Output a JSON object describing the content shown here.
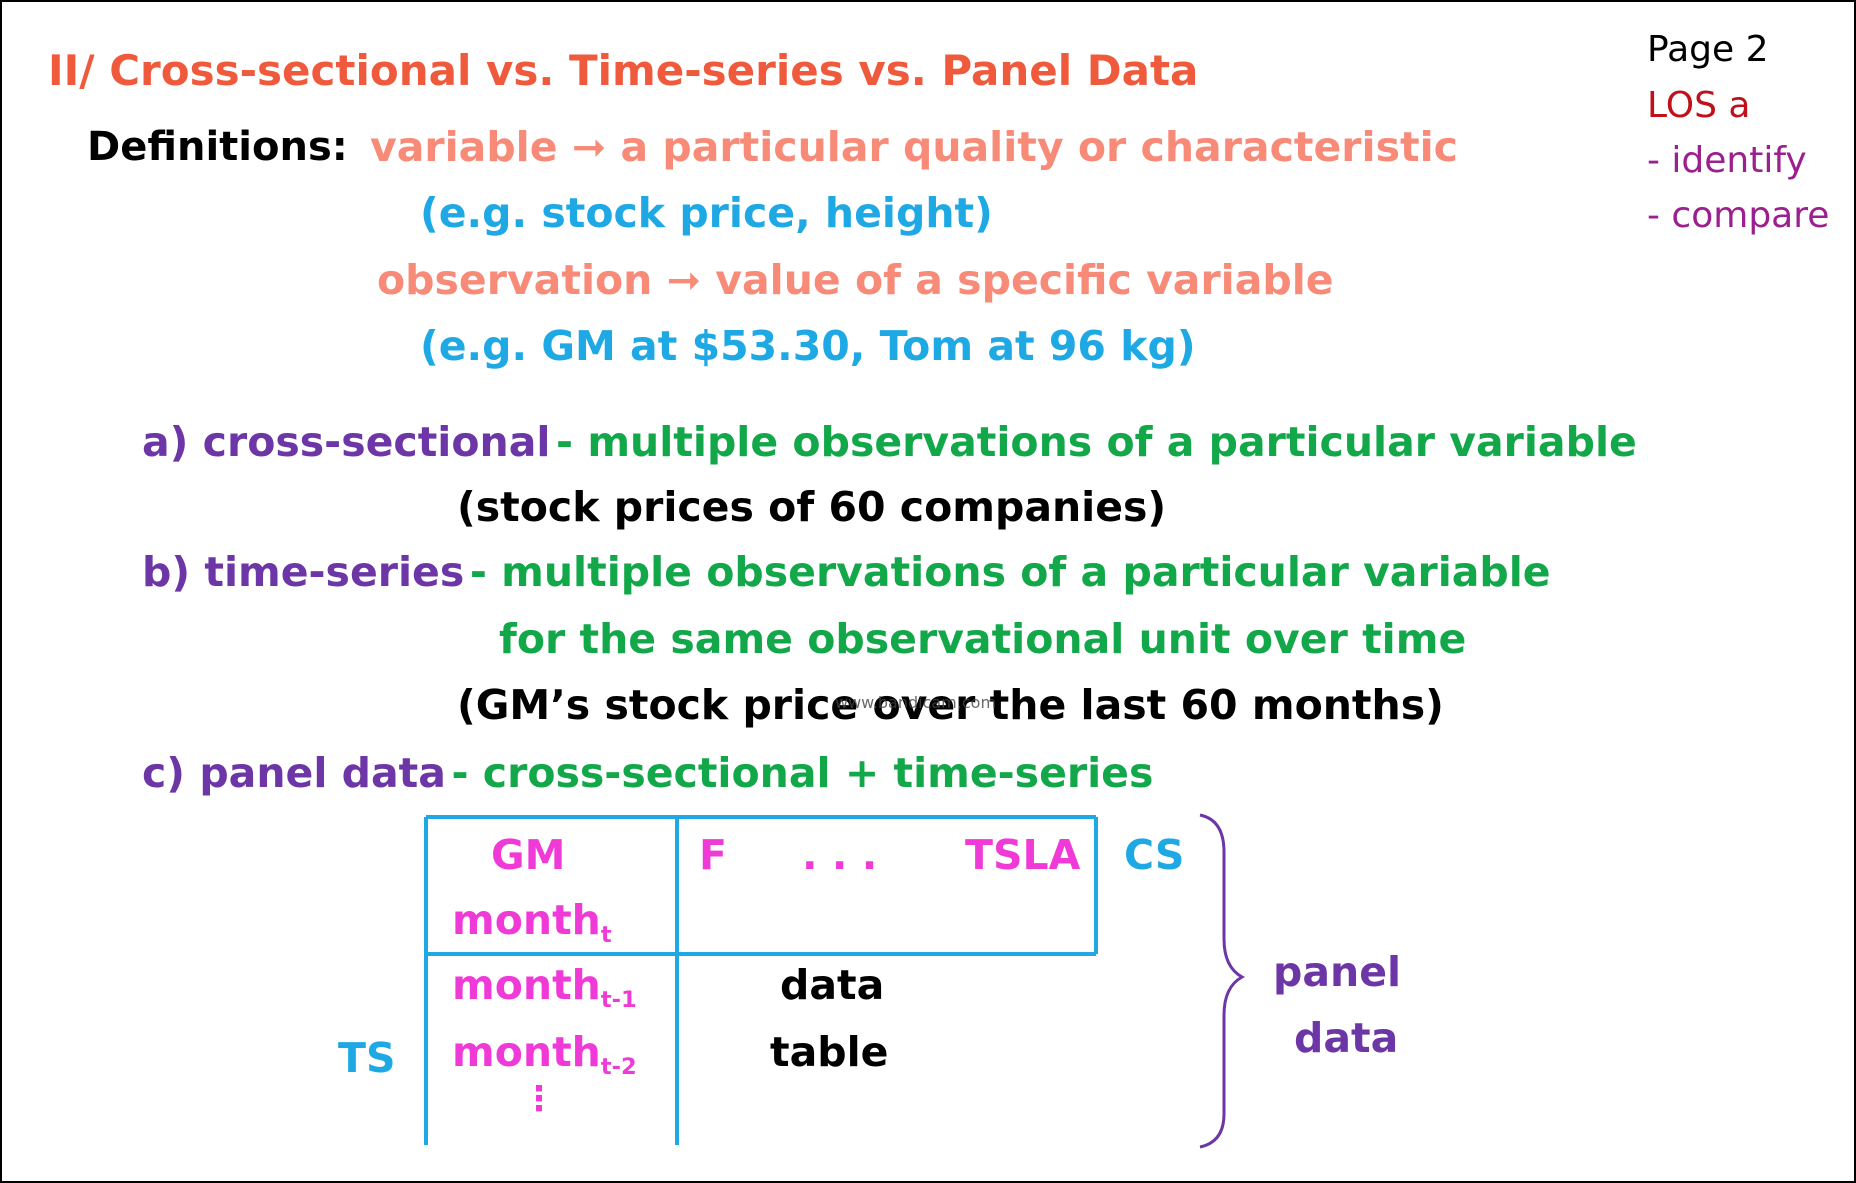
{
  "title": "II/ Cross-sectional vs. Time-series vs. Panel Data",
  "page_info": {
    "page": "Page 2",
    "los": "LOS a",
    "bullet1": "- identify",
    "bullet2": "- compare"
  },
  "definitions": {
    "label": "Definitions:",
    "variable_def": "variable ➞ a particular quality or characteristic",
    "variable_example": "(e.g. stock price, height)",
    "observation_def": "observation ➞ value of a specific variable",
    "observation_example": "(e.g. GM at $53.30, Tom at 96 kg)"
  },
  "types": {
    "a_label": "a) cross-sectional",
    "a_desc": "- multiple observations of a particular variable",
    "a_example": "(stock prices of 60 companies)",
    "b_label": "b) time-series",
    "b_desc": "- multiple observations of a particular variable",
    "b_desc2": "for the same observational unit over time",
    "b_example": "(GM’s stock price over the last 60 months)",
    "c_label": "c) panel data",
    "c_desc": "- cross-sectional + time-series"
  },
  "panel_table": {
    "gm": "GM",
    "f": "F",
    "dots": ". . .",
    "tsla": "TSLA",
    "month": "month",
    "sub_t": "t",
    "sub_t1": "t-1",
    "sub_t2": "t-2",
    "vdots": "⋮",
    "data": "data",
    "table": "table",
    "cs": "CS",
    "ts": "TS",
    "panel": "panel",
    "panel_data": "data"
  },
  "watermark": "www.bandicam.com",
  "colors": {
    "title": "#f05a3c",
    "definition": "#f88a78",
    "example": "#1fa9e4",
    "type_label": "#6d36a6",
    "type_desc": "#12a84a",
    "table_header": "#f03ad8",
    "table_border": "#1fa9e4"
  }
}
